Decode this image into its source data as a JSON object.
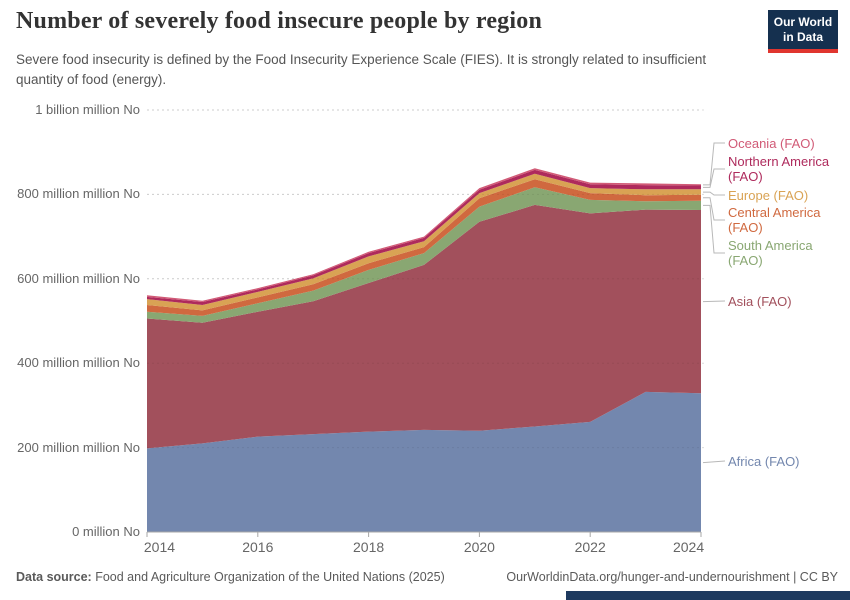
{
  "header": {
    "title": "Number of severely food insecure people by region",
    "subtitle": "Severe food insecurity is defined by the Food Insecurity Experience Scale (FIES). It is strongly related to insufficient quantity of food (energy).",
    "logo": {
      "line1": "Our World",
      "line2": "in Data",
      "bg_color": "#15304f",
      "accent_color": "#e0352f"
    }
  },
  "chart_data": {
    "type": "area",
    "stacked": true,
    "title": "Number of severely food insecure people by region",
    "unit": "million people",
    "x": [
      2014,
      2015,
      2016,
      2017,
      2018,
      2019,
      2020,
      2021,
      2022,
      2023,
      2024
    ],
    "series": [
      {
        "name": "Africa (FAO)",
        "color": "#7387ae",
        "values": [
          198,
          210,
          226,
          232,
          238,
          242,
          240,
          250,
          261,
          332,
          329
        ]
      },
      {
        "name": "Asia (FAO)",
        "color": "#a2505c",
        "values": [
          308,
          286,
          296,
          315,
          352,
          391,
          495,
          525,
          494,
          432,
          434
        ]
      },
      {
        "name": "South America (FAO)",
        "color": "#89a772",
        "values": [
          16,
          16,
          20,
          25,
          31,
          28,
          36,
          42,
          32,
          20,
          22
        ]
      },
      {
        "name": "Central America (FAO)",
        "color": "#d0693f",
        "values": [
          16,
          13,
          14,
          15,
          16,
          14,
          20,
          19,
          16,
          14,
          14
        ]
      },
      {
        "name": "Europe (FAO)",
        "color": "#d9a354",
        "values": [
          14,
          13,
          13,
          14,
          16,
          14,
          12,
          13,
          12,
          14,
          13
        ]
      },
      {
        "name": "Northern America (FAO)",
        "color": "#ae2a5c",
        "values": [
          5,
          7,
          6,
          7,
          8,
          8,
          8,
          9,
          9,
          10,
          9
        ]
      },
      {
        "name": "Oceania (FAO)",
        "color": "#d15a76",
        "values": [
          4,
          3,
          3,
          3,
          3,
          3,
          4,
          4,
          4,
          4,
          3
        ]
      }
    ],
    "ylim": [
      0,
      1000
    ],
    "yticks": [
      {
        "value": 0,
        "label": "0 million No"
      },
      {
        "value": 200,
        "label": "200 million million No"
      },
      {
        "value": 400,
        "label": "400 million million No"
      },
      {
        "value": 600,
        "label": "600 million million No"
      },
      {
        "value": 800,
        "label": "800 million million No"
      },
      {
        "value": 1000,
        "label": "1 billion million No"
      }
    ],
    "xticks": [
      2014,
      2016,
      2018,
      2020,
      2022,
      2024
    ],
    "grid": "dashed horizontal gridlines",
    "legend_position": "right"
  },
  "legend": {
    "entries": [
      {
        "label": "Oceania (FAO)",
        "color": "#d15a76"
      },
      {
        "label": "Northern America (FAO)",
        "color": "#ae2a5c"
      },
      {
        "label": "Europe (FAO)",
        "color": "#d9a354"
      },
      {
        "label": "Central America (FAO)",
        "color": "#d0693f"
      },
      {
        "label": "South America (FAO)",
        "color": "#89a772"
      },
      {
        "label": "Asia (FAO)",
        "color": "#a2505c"
      },
      {
        "label": "Africa (FAO)",
        "color": "#7387ae"
      }
    ]
  },
  "footer": {
    "source_label": "Data source:",
    "source_text": "Food and Agriculture Organization of the United Nations (2025)",
    "credit": "OurWorldinData.org/hunger-and-undernourishment | CC BY"
  }
}
